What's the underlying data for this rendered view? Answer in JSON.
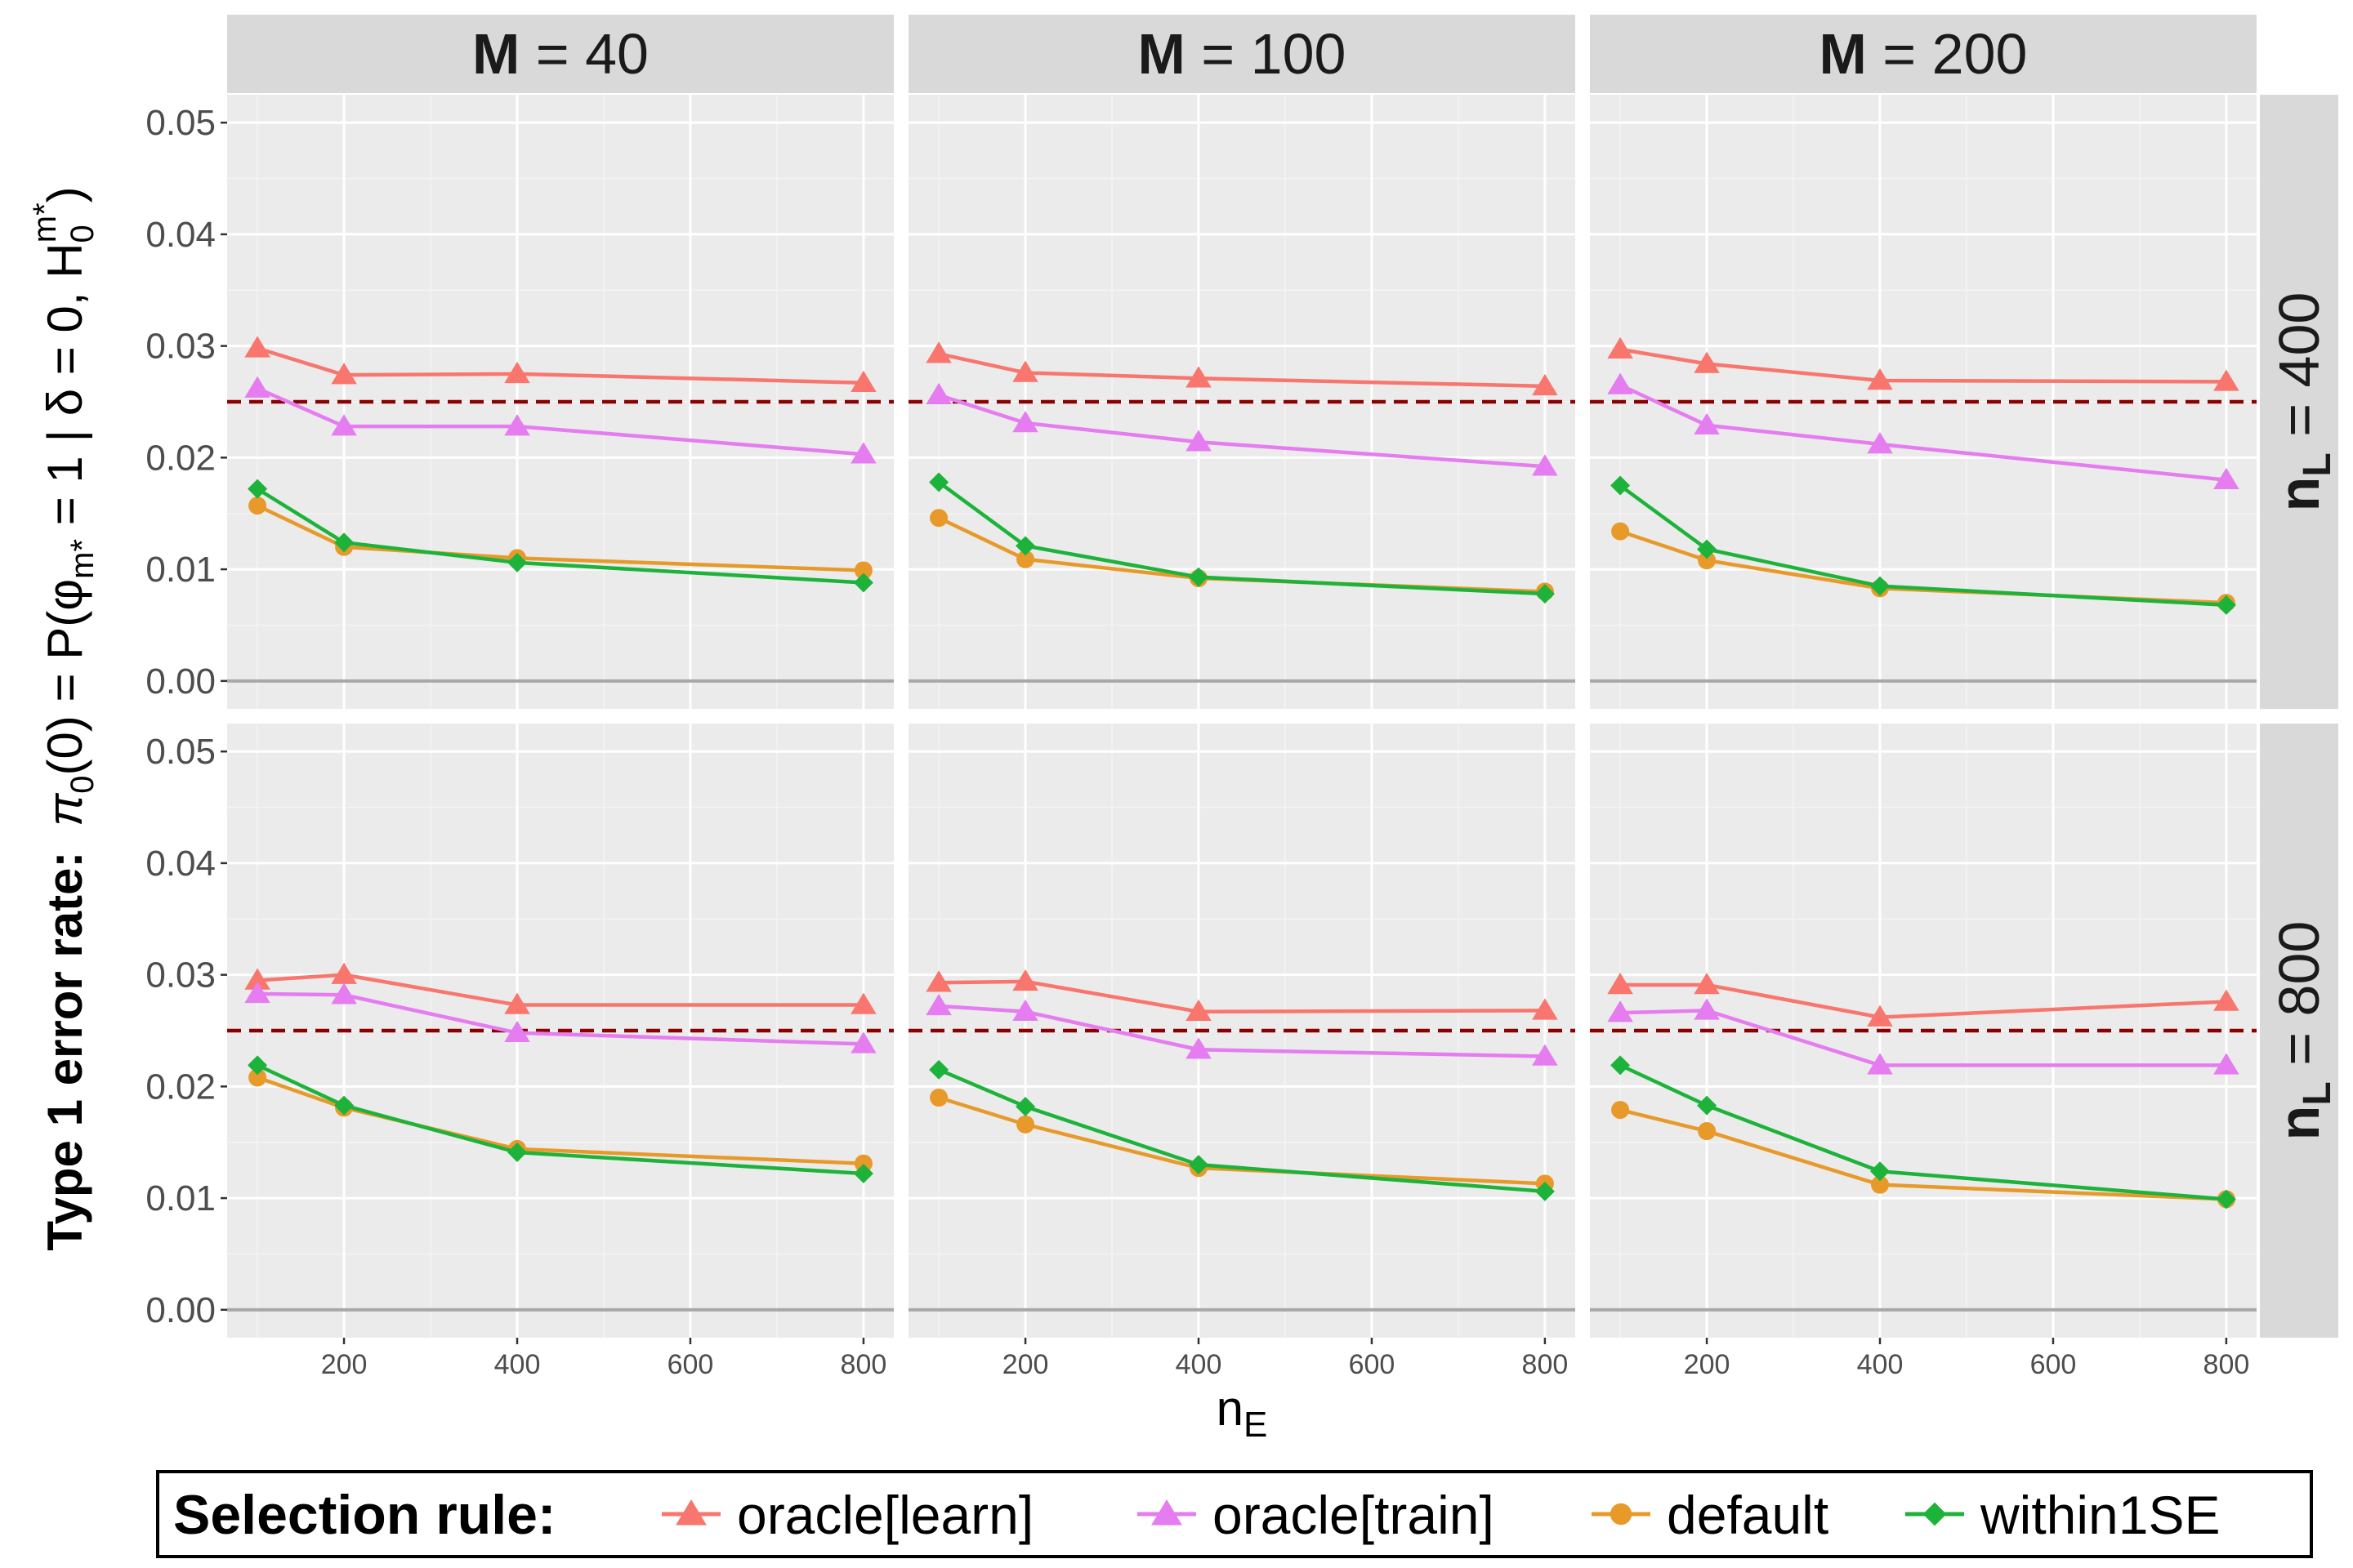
{
  "colors": {
    "oracle_learn": "#F8766D",
    "oracle_train": "#E57CF0",
    "default": "#E79A2A",
    "within1se": "#1DB33B",
    "reference": "#8B0000",
    "panel_bg": "#EBEBEB",
    "strip_bg": "#D9D9D9",
    "grid_major": "#FFFFFF",
    "grid_minor": "#F4F4F4",
    "zero_line": "#A8A8A8"
  },
  "chart_data": {
    "type": "line",
    "facet_cols": {
      "prefix": "M",
      "values": [
        "40",
        "100",
        "200"
      ]
    },
    "facet_rows": {
      "prefix": "n",
      "subscript": "L",
      "values": [
        "400",
        "800"
      ]
    },
    "x": [
      100,
      200,
      400,
      800
    ],
    "xlim": [
      65,
      835
    ],
    "ylim": [
      -0.0025,
      0.0525
    ],
    "x_ticks": [
      "200",
      "400",
      "600",
      "800"
    ],
    "x_tick_values": [
      200,
      400,
      600,
      800
    ],
    "y_ticks": [
      "0.00",
      "0.01",
      "0.02",
      "0.03",
      "0.04",
      "0.05"
    ],
    "y_tick_values": [
      0,
      0.01,
      0.02,
      0.03,
      0.04,
      0.05
    ],
    "reference_line": 0.025,
    "xlabel": {
      "main": "n",
      "sub": "E"
    },
    "ylabel": {
      "prefix": "Type 1 error rate:",
      "pi": "π",
      "pi_sub": "0",
      "mid": "(0) = P(",
      "phi": "φ",
      "phi_sub": "m*",
      "cond": " = 1 | δ = 0, H",
      "h_sub": "0",
      "h_sup": "m*",
      "close": ")"
    },
    "grid": true,
    "legend": {
      "title": "Selection rule:",
      "position": "bottom",
      "entries": [
        "oracle[learn]",
        "oracle[train]",
        "default",
        "within1SE"
      ]
    },
    "series_order": [
      "oracle_learn",
      "oracle_train",
      "default",
      "within1se"
    ],
    "series_markers": {
      "oracle_learn": "triangle",
      "oracle_train": "triangle",
      "default": "circle",
      "within1se": "diamond"
    },
    "panels": [
      {
        "row": 0,
        "col": 0,
        "series": {
          "oracle_learn": [
            0.0298,
            0.0274,
            0.0275,
            0.0267
          ],
          "oracle_train": [
            0.0262,
            0.0228,
            0.0228,
            0.0203
          ],
          "default": [
            0.0157,
            0.012,
            0.011,
            0.0099
          ],
          "within1se": [
            0.0172,
            0.0124,
            0.0106,
            0.0088
          ]
        }
      },
      {
        "row": 0,
        "col": 1,
        "series": {
          "oracle_learn": [
            0.0293,
            0.0276,
            0.0271,
            0.0264
          ],
          "oracle_train": [
            0.0256,
            0.0231,
            0.0214,
            0.0192
          ],
          "default": [
            0.0146,
            0.0109,
            0.0092,
            0.008
          ],
          "within1se": [
            0.0178,
            0.0121,
            0.0093,
            0.0078
          ]
        }
      },
      {
        "row": 0,
        "col": 2,
        "series": {
          "oracle_learn": [
            0.0297,
            0.0284,
            0.0269,
            0.0268
          ],
          "oracle_train": [
            0.0265,
            0.0229,
            0.0212,
            0.018
          ],
          "default": [
            0.0134,
            0.0108,
            0.0083,
            0.007
          ],
          "within1se": [
            0.0175,
            0.0118,
            0.0085,
            0.0068
          ]
        }
      },
      {
        "row": 1,
        "col": 0,
        "series": {
          "oracle_learn": [
            0.0295,
            0.03,
            0.0273,
            0.0273
          ],
          "oracle_train": [
            0.0283,
            0.0282,
            0.0248,
            0.0238
          ],
          "default": [
            0.0208,
            0.0181,
            0.0144,
            0.0131
          ],
          "within1se": [
            0.0219,
            0.0183,
            0.0141,
            0.0122
          ]
        }
      },
      {
        "row": 1,
        "col": 1,
        "series": {
          "oracle_learn": [
            0.0293,
            0.0294,
            0.0267,
            0.0268
          ],
          "oracle_train": [
            0.0272,
            0.0267,
            0.0233,
            0.0227
          ],
          "default": [
            0.019,
            0.0166,
            0.0127,
            0.0113
          ],
          "within1se": [
            0.0215,
            0.0182,
            0.013,
            0.0106
          ]
        }
      },
      {
        "row": 1,
        "col": 2,
        "series": {
          "oracle_learn": [
            0.0291,
            0.0291,
            0.0262,
            0.0276
          ],
          "oracle_train": [
            0.0266,
            0.0268,
            0.0219,
            0.0219
          ],
          "default": [
            0.0179,
            0.016,
            0.0112,
            0.0099
          ],
          "within1se": [
            0.0219,
            0.0183,
            0.0124,
            0.0099
          ]
        }
      }
    ]
  }
}
